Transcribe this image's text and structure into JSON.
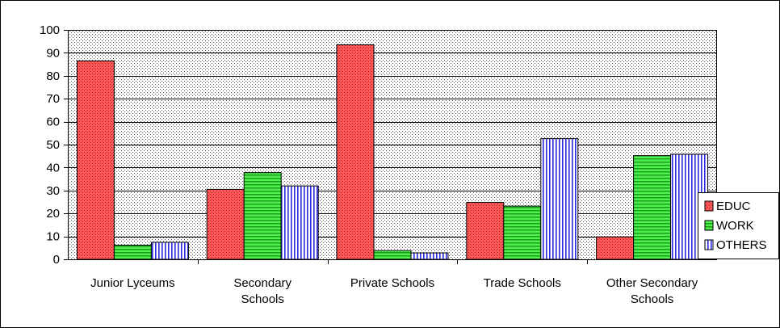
{
  "chart_data": {
    "type": "bar",
    "title": "",
    "xlabel": "",
    "ylabel": "",
    "ylim": [
      0,
      100
    ],
    "ytick_step": 10,
    "yticks": [
      "0",
      "10",
      "20",
      "30",
      "40",
      "50",
      "60",
      "70",
      "80",
      "90",
      "100"
    ],
    "grid": true,
    "legend_position": "right",
    "categories": [
      [
        "Junior Lyceums"
      ],
      [
        "Secondary",
        "Schools"
      ],
      [
        "Private Schools"
      ],
      [
        "Trade Schools"
      ],
      [
        "Other Secondary",
        "Schools"
      ]
    ],
    "series": [
      {
        "name": "EDUC",
        "color": "#e83a3a",
        "values": [
          86.5,
          30.5,
          93.5,
          24.8,
          9.8
        ]
      },
      {
        "name": "WORK",
        "color": "#3ee83a",
        "values": [
          6.2,
          37.8,
          3.8,
          23.2,
          45.2
        ]
      },
      {
        "name": "OTHERS",
        "color": "#2a2ae6",
        "values": [
          7.4,
          32.0,
          2.8,
          52.6,
          45.8
        ]
      }
    ]
  }
}
